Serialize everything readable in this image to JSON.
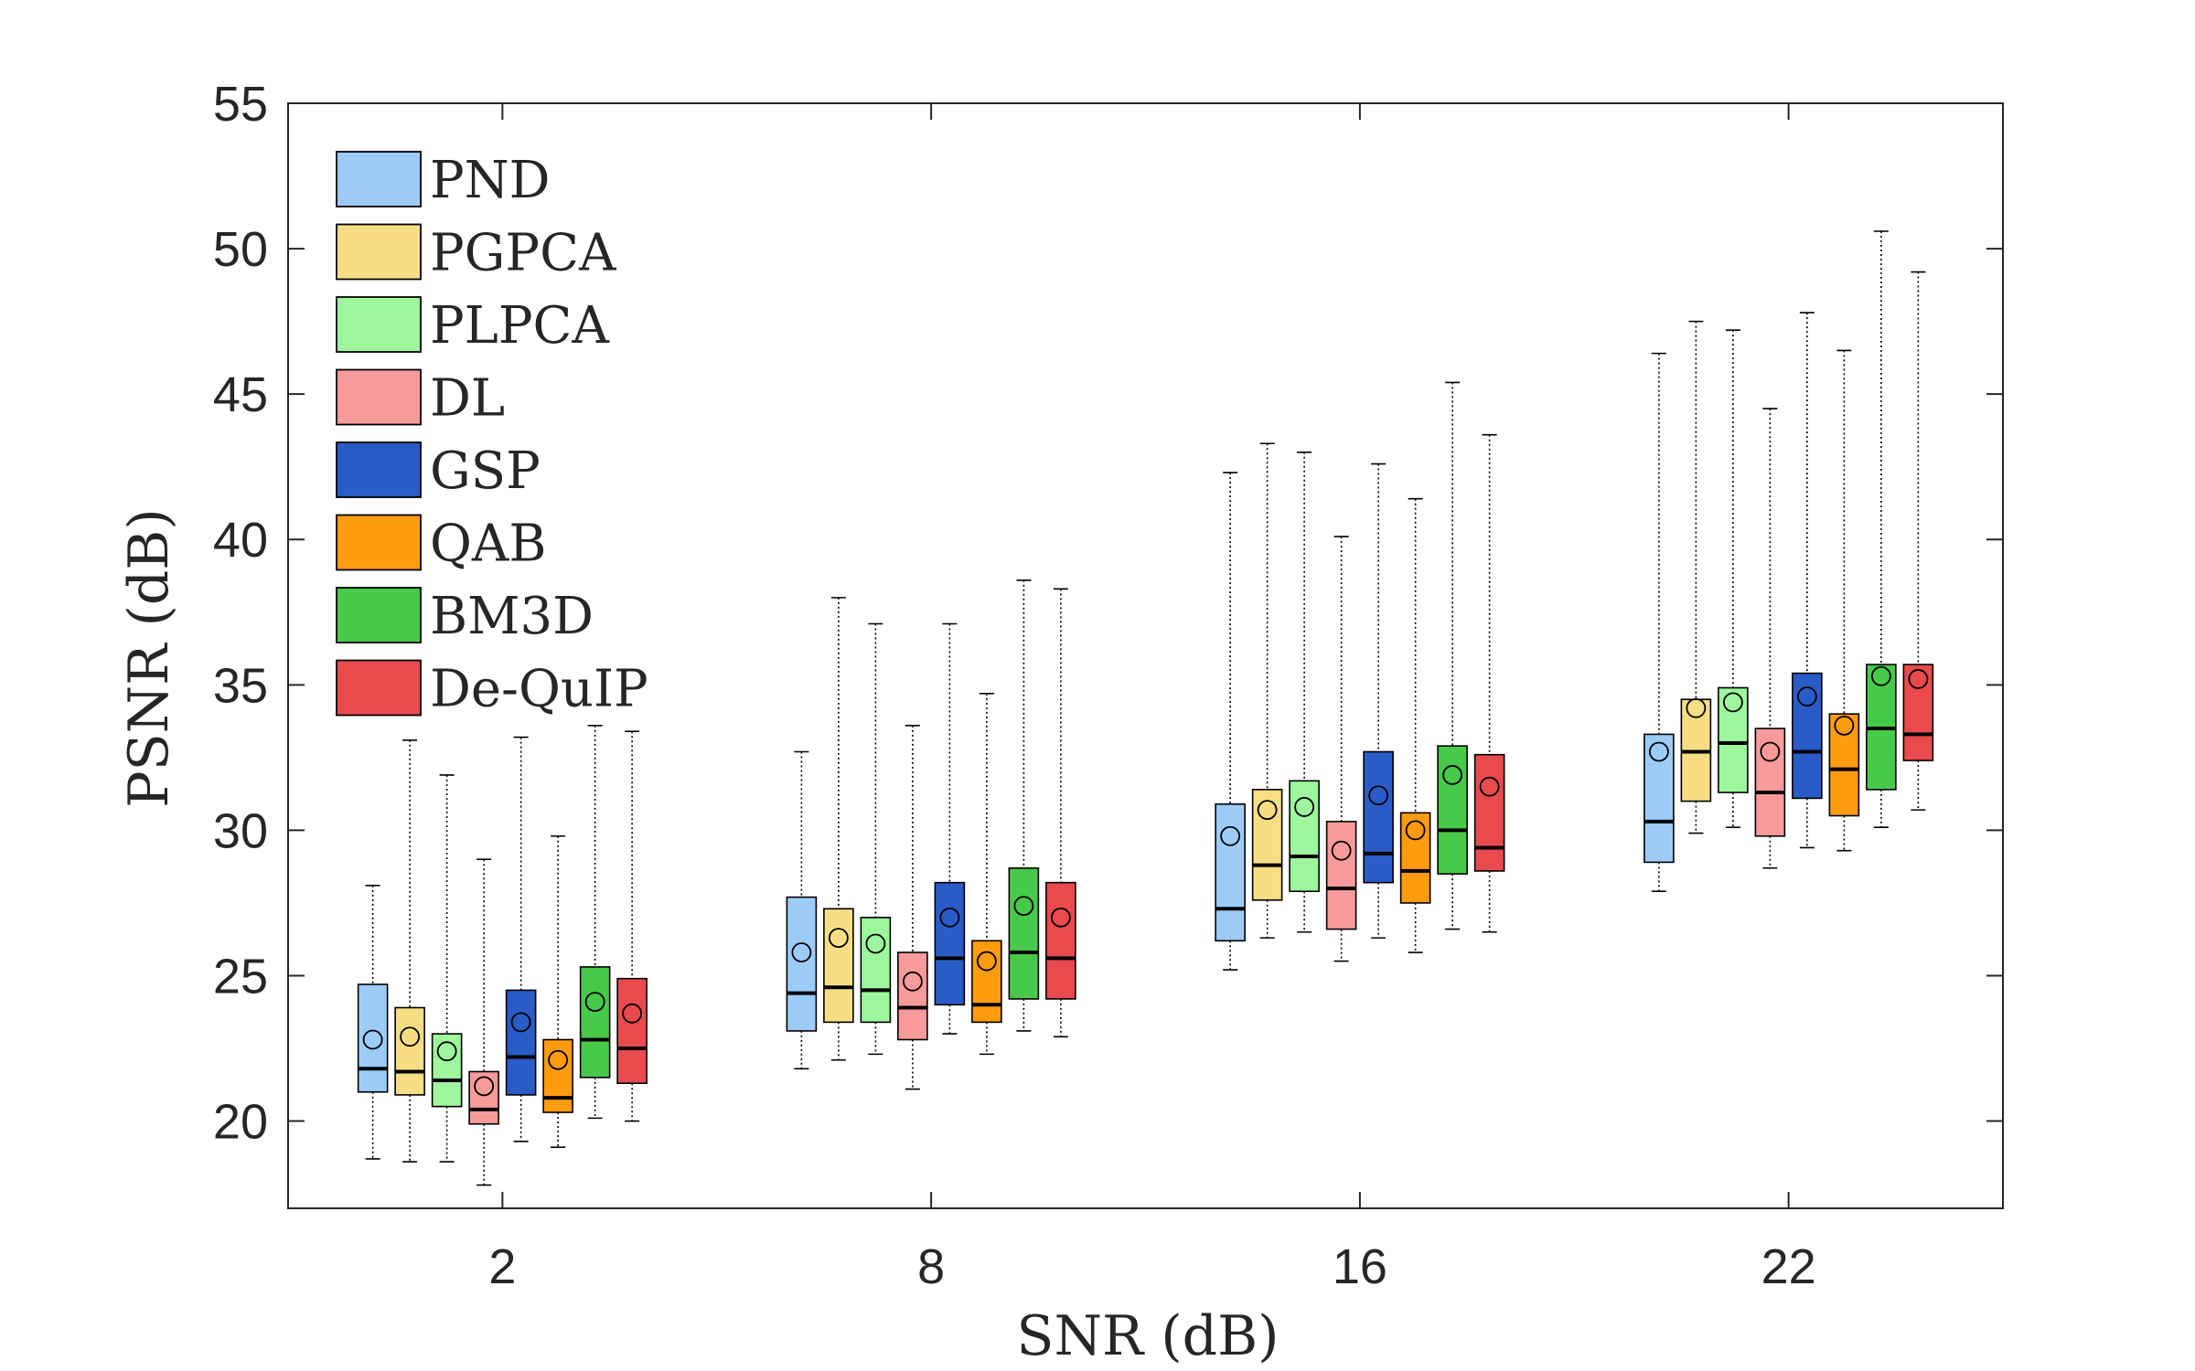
{
  "chart_data": {
    "type": "box",
    "title": "",
    "xlabel": "SNR (dB)",
    "ylabel": "PSNR (dB)",
    "ylim": [
      17,
      55
    ],
    "yticks": [
      20,
      25,
      30,
      35,
      40,
      45,
      50,
      55
    ],
    "categories": [
      "2",
      "8",
      "16",
      "22"
    ],
    "legend_position": "top-left",
    "grid": false,
    "series": [
      {
        "name": "PND",
        "color": "#9CCBF8",
        "boxes": [
          {
            "min": 18.7,
            "q1": 21.0,
            "median": 21.8,
            "q3": 24.7,
            "max": 28.1,
            "mean": 22.8
          },
          {
            "min": 21.8,
            "q1": 23.1,
            "median": 24.4,
            "q3": 27.7,
            "max": 32.7,
            "mean": 25.8
          },
          {
            "min": 25.2,
            "q1": 26.2,
            "median": 27.3,
            "q3": 30.9,
            "max": 42.3,
            "mean": 29.8
          },
          {
            "min": 27.9,
            "q1": 28.9,
            "median": 30.3,
            "q3": 33.3,
            "max": 46.4,
            "mean": 32.7
          }
        ]
      },
      {
        "name": "PGPCA",
        "color": "#F7DE85",
        "boxes": [
          {
            "min": 18.6,
            "q1": 20.9,
            "median": 21.7,
            "q3": 23.9,
            "max": 33.1,
            "mean": 22.9
          },
          {
            "min": 22.1,
            "q1": 23.4,
            "median": 24.6,
            "q3": 27.3,
            "max": 38.0,
            "mean": 26.3
          },
          {
            "min": 26.3,
            "q1": 27.6,
            "median": 28.8,
            "q3": 31.4,
            "max": 43.3,
            "mean": 30.7
          },
          {
            "min": 29.9,
            "q1": 31.0,
            "median": 32.7,
            "q3": 34.5,
            "max": 47.5,
            "mean": 34.2
          }
        ]
      },
      {
        "name": "PLPCA",
        "color": "#9EF79C",
        "boxes": [
          {
            "min": 18.6,
            "q1": 20.5,
            "median": 21.4,
            "q3": 23.0,
            "max": 31.9,
            "mean": 22.4
          },
          {
            "min": 22.3,
            "q1": 23.4,
            "median": 24.5,
            "q3": 27.0,
            "max": 37.1,
            "mean": 26.1
          },
          {
            "min": 26.5,
            "q1": 27.9,
            "median": 29.1,
            "q3": 31.7,
            "max": 43.0,
            "mean": 30.8
          },
          {
            "min": 30.1,
            "q1": 31.3,
            "median": 33.0,
            "q3": 34.9,
            "max": 47.2,
            "mean": 34.4
          }
        ]
      },
      {
        "name": "DL",
        "color": "#F99A9A",
        "boxes": [
          {
            "min": 17.8,
            "q1": 19.9,
            "median": 20.4,
            "q3": 21.7,
            "max": 29.0,
            "mean": 21.2
          },
          {
            "min": 21.1,
            "q1": 22.8,
            "median": 23.9,
            "q3": 25.8,
            "max": 33.6,
            "mean": 24.8
          },
          {
            "min": 25.5,
            "q1": 26.6,
            "median": 28.0,
            "q3": 30.3,
            "max": 40.1,
            "mean": 29.3
          },
          {
            "min": 28.7,
            "q1": 29.8,
            "median": 31.3,
            "q3": 33.5,
            "max": 44.5,
            "mean": 32.7
          }
        ]
      },
      {
        "name": "GSP",
        "color": "#2A5CC7",
        "boxes": [
          {
            "min": 19.3,
            "q1": 20.9,
            "median": 22.2,
            "q3": 24.5,
            "max": 33.2,
            "mean": 23.4
          },
          {
            "min": 23.0,
            "q1": 24.0,
            "median": 25.6,
            "q3": 28.2,
            "max": 37.1,
            "mean": 27.0
          },
          {
            "min": 26.3,
            "q1": 28.2,
            "median": 29.2,
            "q3": 32.7,
            "max": 42.6,
            "mean": 31.2
          },
          {
            "min": 29.4,
            "q1": 31.1,
            "median": 32.7,
            "q3": 35.4,
            "max": 47.8,
            "mean": 34.6
          }
        ]
      },
      {
        "name": "QAB",
        "color": "#FE9B0E",
        "boxes": [
          {
            "min": 19.1,
            "q1": 20.3,
            "median": 20.8,
            "q3": 22.8,
            "max": 29.8,
            "mean": 22.1
          },
          {
            "min": 22.3,
            "q1": 23.4,
            "median": 24.0,
            "q3": 26.2,
            "max": 34.7,
            "mean": 25.5
          },
          {
            "min": 25.8,
            "q1": 27.5,
            "median": 28.6,
            "q3": 30.6,
            "max": 41.4,
            "mean": 30.0
          },
          {
            "min": 29.3,
            "q1": 30.5,
            "median": 32.1,
            "q3": 34.0,
            "max": 46.5,
            "mean": 33.6
          }
        ]
      },
      {
        "name": "BM3D",
        "color": "#47C94A",
        "boxes": [
          {
            "min": 20.1,
            "q1": 21.5,
            "median": 22.8,
            "q3": 25.3,
            "max": 33.6,
            "mean": 24.1
          },
          {
            "min": 23.1,
            "q1": 24.2,
            "median": 25.8,
            "q3": 28.7,
            "max": 38.6,
            "mean": 27.4
          },
          {
            "min": 26.6,
            "q1": 28.5,
            "median": 30.0,
            "q3": 32.9,
            "max": 45.4,
            "mean": 31.9
          },
          {
            "min": 30.1,
            "q1": 31.4,
            "median": 33.5,
            "q3": 35.7,
            "max": 50.6,
            "mean": 35.3
          }
        ]
      },
      {
        "name": "De-QuIP",
        "color": "#E84A4E",
        "boxes": [
          {
            "min": 20.0,
            "q1": 21.3,
            "median": 22.5,
            "q3": 24.9,
            "max": 33.4,
            "mean": 23.7
          },
          {
            "min": 22.9,
            "q1": 24.2,
            "median": 25.6,
            "q3": 28.2,
            "max": 38.3,
            "mean": 27.0
          },
          {
            "min": 26.5,
            "q1": 28.6,
            "median": 29.4,
            "q3": 32.6,
            "max": 43.6,
            "mean": 31.5
          },
          {
            "min": 30.7,
            "q1": 32.4,
            "median": 33.3,
            "q3": 35.7,
            "max": 49.2,
            "mean": 35.2
          }
        ]
      }
    ]
  }
}
